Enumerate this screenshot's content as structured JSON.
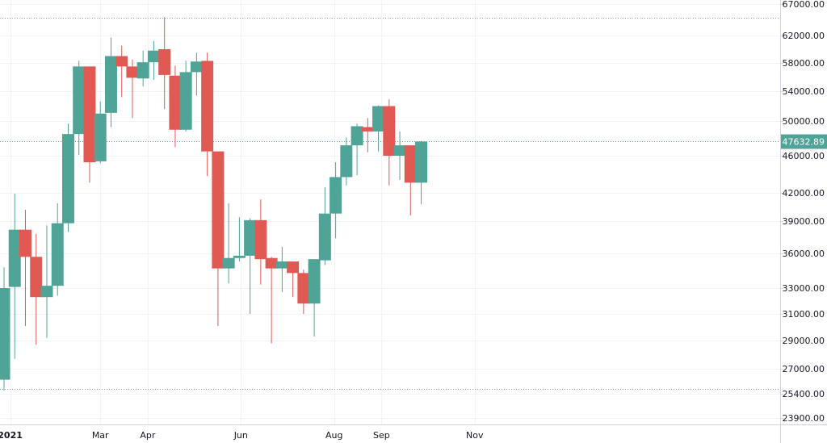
{
  "chart_data": {
    "type": "candlestick",
    "interval": "weekly",
    "colors": {
      "up": "#4fa397",
      "down": "#e05a53",
      "grid": "#f0f3fa",
      "axis": "#d1d4dc",
      "price_line": "#4fa397",
      "level_line": "#9aa0ad"
    },
    "y_ticks": [
      "67000.00",
      "62000.00",
      "58000.00",
      "54000.00",
      "50000.00",
      "46000.00",
      "42000.00",
      "39000.00",
      "36000.00",
      "33000.00",
      "31000.00",
      "29000.00",
      "27000.00",
      "25400.00",
      "23900.00"
    ],
    "x_ticks": [
      {
        "label": "2021",
        "bold": true,
        "date": "2021-01-01"
      },
      {
        "label": "Mar",
        "bold": false,
        "date": "2021-03-01"
      },
      {
        "label": "Apr",
        "bold": false,
        "date": "2021-04-01"
      },
      {
        "label": "Jun",
        "bold": false,
        "date": "2021-06-01"
      },
      {
        "label": "Aug",
        "bold": false,
        "date": "2021-08-01"
      },
      {
        "label": "Sep",
        "bold": false,
        "date": "2021-09-01"
      },
      {
        "label": "Nov",
        "bold": false,
        "date": "2021-11-01"
      }
    ],
    "last_price": "47632.89",
    "last_price_value": 47632.89,
    "levels": [
      64850,
      25700
    ],
    "candles": [
      {
        "date": "2020-12-28",
        "open": 26300,
        "high": 34800,
        "low": 25600,
        "close": 33000
      },
      {
        "date": "2021-01-04",
        "open": 33100,
        "high": 41900,
        "low": 27700,
        "close": 38200
      },
      {
        "date": "2021-01-11",
        "open": 38200,
        "high": 40200,
        "low": 30100,
        "close": 35700
      },
      {
        "date": "2021-01-18",
        "open": 35700,
        "high": 37800,
        "low": 28700,
        "close": 32300
      },
      {
        "date": "2021-01-25",
        "open": 32300,
        "high": 38600,
        "low": 29200,
        "close": 33200
      },
      {
        "date": "2021-02-01",
        "open": 33200,
        "high": 40900,
        "low": 32400,
        "close": 38800
      },
      {
        "date": "2021-02-08",
        "open": 38800,
        "high": 49700,
        "low": 38000,
        "close": 48500
      },
      {
        "date": "2021-02-15",
        "open": 48500,
        "high": 58300,
        "low": 46100,
        "close": 57500
      },
      {
        "date": "2021-02-22",
        "open": 57500,
        "high": 57500,
        "low": 43100,
        "close": 45300
      },
      {
        "date": "2021-03-01",
        "open": 45400,
        "high": 52600,
        "low": 45200,
        "close": 51000
      },
      {
        "date": "2021-03-08",
        "open": 51100,
        "high": 61700,
        "low": 49300,
        "close": 59000
      },
      {
        "date": "2021-03-15",
        "open": 59000,
        "high": 60500,
        "low": 53200,
        "close": 57500
      },
      {
        "date": "2021-03-22",
        "open": 57500,
        "high": 58500,
        "low": 50400,
        "close": 55900
      },
      {
        "date": "2021-03-29",
        "open": 55800,
        "high": 59800,
        "low": 54700,
        "close": 58100
      },
      {
        "date": "2021-04-05",
        "open": 58100,
        "high": 61200,
        "low": 55600,
        "close": 59800
      },
      {
        "date": "2021-04-12",
        "open": 60000,
        "high": 64900,
        "low": 51600,
        "close": 56300
      },
      {
        "date": "2021-04-19",
        "open": 56200,
        "high": 57600,
        "low": 47000,
        "close": 49000
      },
      {
        "date": "2021-04-26",
        "open": 49000,
        "high": 58300,
        "low": 48800,
        "close": 56700
      },
      {
        "date": "2021-05-03",
        "open": 56700,
        "high": 59500,
        "low": 53400,
        "close": 58200
      },
      {
        "date": "2021-05-10",
        "open": 58300,
        "high": 59500,
        "low": 43800,
        "close": 46500
      },
      {
        "date": "2021-05-17",
        "open": 46500,
        "high": 46500,
        "low": 30100,
        "close": 34700
      },
      {
        "date": "2021-05-24",
        "open": 34700,
        "high": 40900,
        "low": 33400,
        "close": 35600
      },
      {
        "date": "2021-05-31",
        "open": 35600,
        "high": 39400,
        "low": 35300,
        "close": 35800
      },
      {
        "date": "2021-06-07",
        "open": 35800,
        "high": 39300,
        "low": 31000,
        "close": 39100
      },
      {
        "date": "2021-06-14",
        "open": 39100,
        "high": 41300,
        "low": 33300,
        "close": 35500
      },
      {
        "date": "2021-06-21",
        "open": 35600,
        "high": 35700,
        "low": 28800,
        "close": 34700
      },
      {
        "date": "2021-06-28",
        "open": 34700,
        "high": 36600,
        "low": 32700,
        "close": 35300
      },
      {
        "date": "2021-07-05",
        "open": 35300,
        "high": 35300,
        "low": 32300,
        "close": 34300
      },
      {
        "date": "2021-07-12",
        "open": 34300,
        "high": 34600,
        "low": 31000,
        "close": 31800
      },
      {
        "date": "2021-07-19",
        "open": 31800,
        "high": 35500,
        "low": 29300,
        "close": 35500
      },
      {
        "date": "2021-07-26",
        "open": 35400,
        "high": 42600,
        "low": 35000,
        "close": 39800
      },
      {
        "date": "2021-08-02",
        "open": 39800,
        "high": 45300,
        "low": 37400,
        "close": 43700
      },
      {
        "date": "2021-08-09",
        "open": 43700,
        "high": 48100,
        "low": 42800,
        "close": 47200
      },
      {
        "date": "2021-08-16",
        "open": 47200,
        "high": 49700,
        "low": 43900,
        "close": 49400
      },
      {
        "date": "2021-08-23",
        "open": 49300,
        "high": 50400,
        "low": 46400,
        "close": 48800
      },
      {
        "date": "2021-08-30",
        "open": 48800,
        "high": 52100,
        "low": 46500,
        "close": 52000
      },
      {
        "date": "2021-09-06",
        "open": 52000,
        "high": 52900,
        "low": 42800,
        "close": 46000
      },
      {
        "date": "2021-09-13",
        "open": 46000,
        "high": 48800,
        "low": 43400,
        "close": 47200
      },
      {
        "date": "2021-09-20",
        "open": 47200,
        "high": 47200,
        "low": 39600,
        "close": 43100
      },
      {
        "date": "2021-09-27",
        "open": 43100,
        "high": 47700,
        "low": 40800,
        "close": 47632.89
      }
    ]
  }
}
